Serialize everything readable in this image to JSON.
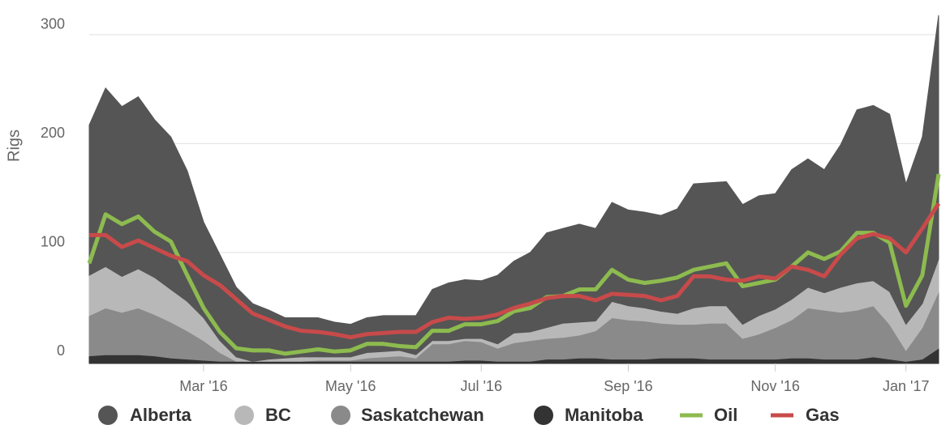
{
  "chart_data": {
    "type": "area",
    "stacked": true,
    "y_label": "Rigs",
    "categories": [
      null,
      null,
      null,
      null,
      null,
      null,
      null,
      "Mar '16",
      null,
      null,
      null,
      null,
      null,
      null,
      null,
      null,
      "May '16",
      null,
      null,
      null,
      null,
      null,
      null,
      null,
      "Jul '16",
      null,
      null,
      null,
      null,
      null,
      null,
      null,
      null,
      "Sep '16",
      null,
      null,
      null,
      null,
      null,
      null,
      null,
      null,
      "Nov '16",
      null,
      null,
      null,
      null,
      null,
      null,
      null,
      "Jan '17",
      null,
      null
    ],
    "ylim": [
      -2,
      320
    ],
    "yticks": [
      0,
      100,
      200,
      300
    ],
    "grid": true,
    "legend": "bottom",
    "series": [
      {
        "name": "Alberta",
        "color": "#555555",
        "values": [
          138,
          164,
          156,
          158,
          145,
          140,
          120,
          88,
          79,
          64,
          53,
          45,
          37,
          36,
          36,
          32,
          30,
          32,
          33,
          32,
          36,
          47,
          53,
          54,
          53,
          63,
          66,
          73,
          87,
          87,
          90,
          85,
          91,
          88,
          88,
          88,
          96,
          114,
          113,
          114,
          110,
          110,
          106,
          119,
          118,
          113,
          131,
          159,
          161,
          163,
          129,
          153,
          224
        ]
      },
      {
        "name": "BC",
        "color": "#b8b8b8",
        "values": [
          37,
          38,
          33,
          36,
          34,
          30,
          27,
          21,
          11,
          4,
          0,
          2,
          3,
          4,
          3,
          3,
          3,
          5,
          5,
          5,
          3,
          3,
          3,
          2,
          3,
          4,
          9,
          8,
          10,
          13,
          12,
          9,
          15,
          13,
          12,
          11,
          10,
          15,
          16,
          16,
          13,
          17,
          17,
          19,
          19,
          16,
          23,
          25,
          23,
          30,
          24,
          22,
          30
        ]
      },
      {
        "name": "Saskatchewan",
        "color": "#8a8a8a",
        "values": [
          37,
          43,
          39,
          43,
          38,
          33,
          26,
          18,
          8,
          0,
          0,
          0,
          0,
          0,
          1,
          1,
          1,
          3,
          4,
          5,
          3,
          16,
          16,
          18,
          17,
          12,
          17,
          19,
          19,
          20,
          21,
          25,
          38,
          36,
          35,
          32,
          31,
          31,
          33,
          33,
          19,
          23,
          29,
          35,
          46,
          45,
          43,
          45,
          47,
          32,
          10,
          29,
          52
        ]
      },
      {
        "name": "Manitoba",
        "color": "#333333",
        "values": [
          5,
          6,
          6,
          6,
          5,
          3,
          2,
          1,
          0,
          0,
          0,
          0,
          0,
          0,
          0,
          0,
          0,
          0,
          0,
          0,
          0,
          0,
          0,
          1,
          1,
          0,
          0,
          0,
          2,
          2,
          3,
          3,
          2,
          2,
          2,
          3,
          3,
          3,
          2,
          2,
          2,
          2,
          2,
          3,
          3,
          2,
          2,
          2,
          4,
          2,
          0,
          2,
          12
        ]
      },
      {
        "name": "Oil",
        "color": "#8dbb4f",
        "type": "line",
        "values": [
          90,
          135,
          126,
          133,
          119,
          110,
          79,
          49,
          27,
          12,
          10,
          10,
          7,
          9,
          11,
          9,
          10,
          16,
          16,
          14,
          13,
          28,
          28,
          34,
          34,
          37,
          46,
          49,
          59,
          60,
          66,
          66,
          84,
          75,
          72,
          74,
          77,
          84,
          87,
          90,
          69,
          72,
          75,
          87,
          100,
          94,
          101,
          118,
          118,
          109,
          51,
          79,
          172
        ]
      },
      {
        "name": "Gas",
        "color": "#c84a4a",
        "type": "line",
        "values": [
          116,
          116,
          105,
          111,
          104,
          97,
          92,
          79,
          70,
          57,
          44,
          38,
          32,
          28,
          27,
          25,
          22,
          25,
          26,
          27,
          27,
          36,
          40,
          39,
          40,
          43,
          49,
          53,
          58,
          60,
          60,
          56,
          62,
          61,
          60,
          56,
          60,
          78,
          78,
          75,
          74,
          78,
          76,
          87,
          84,
          78,
          98,
          113,
          117,
          113,
          100,
          122,
          145
        ]
      }
    ]
  }
}
